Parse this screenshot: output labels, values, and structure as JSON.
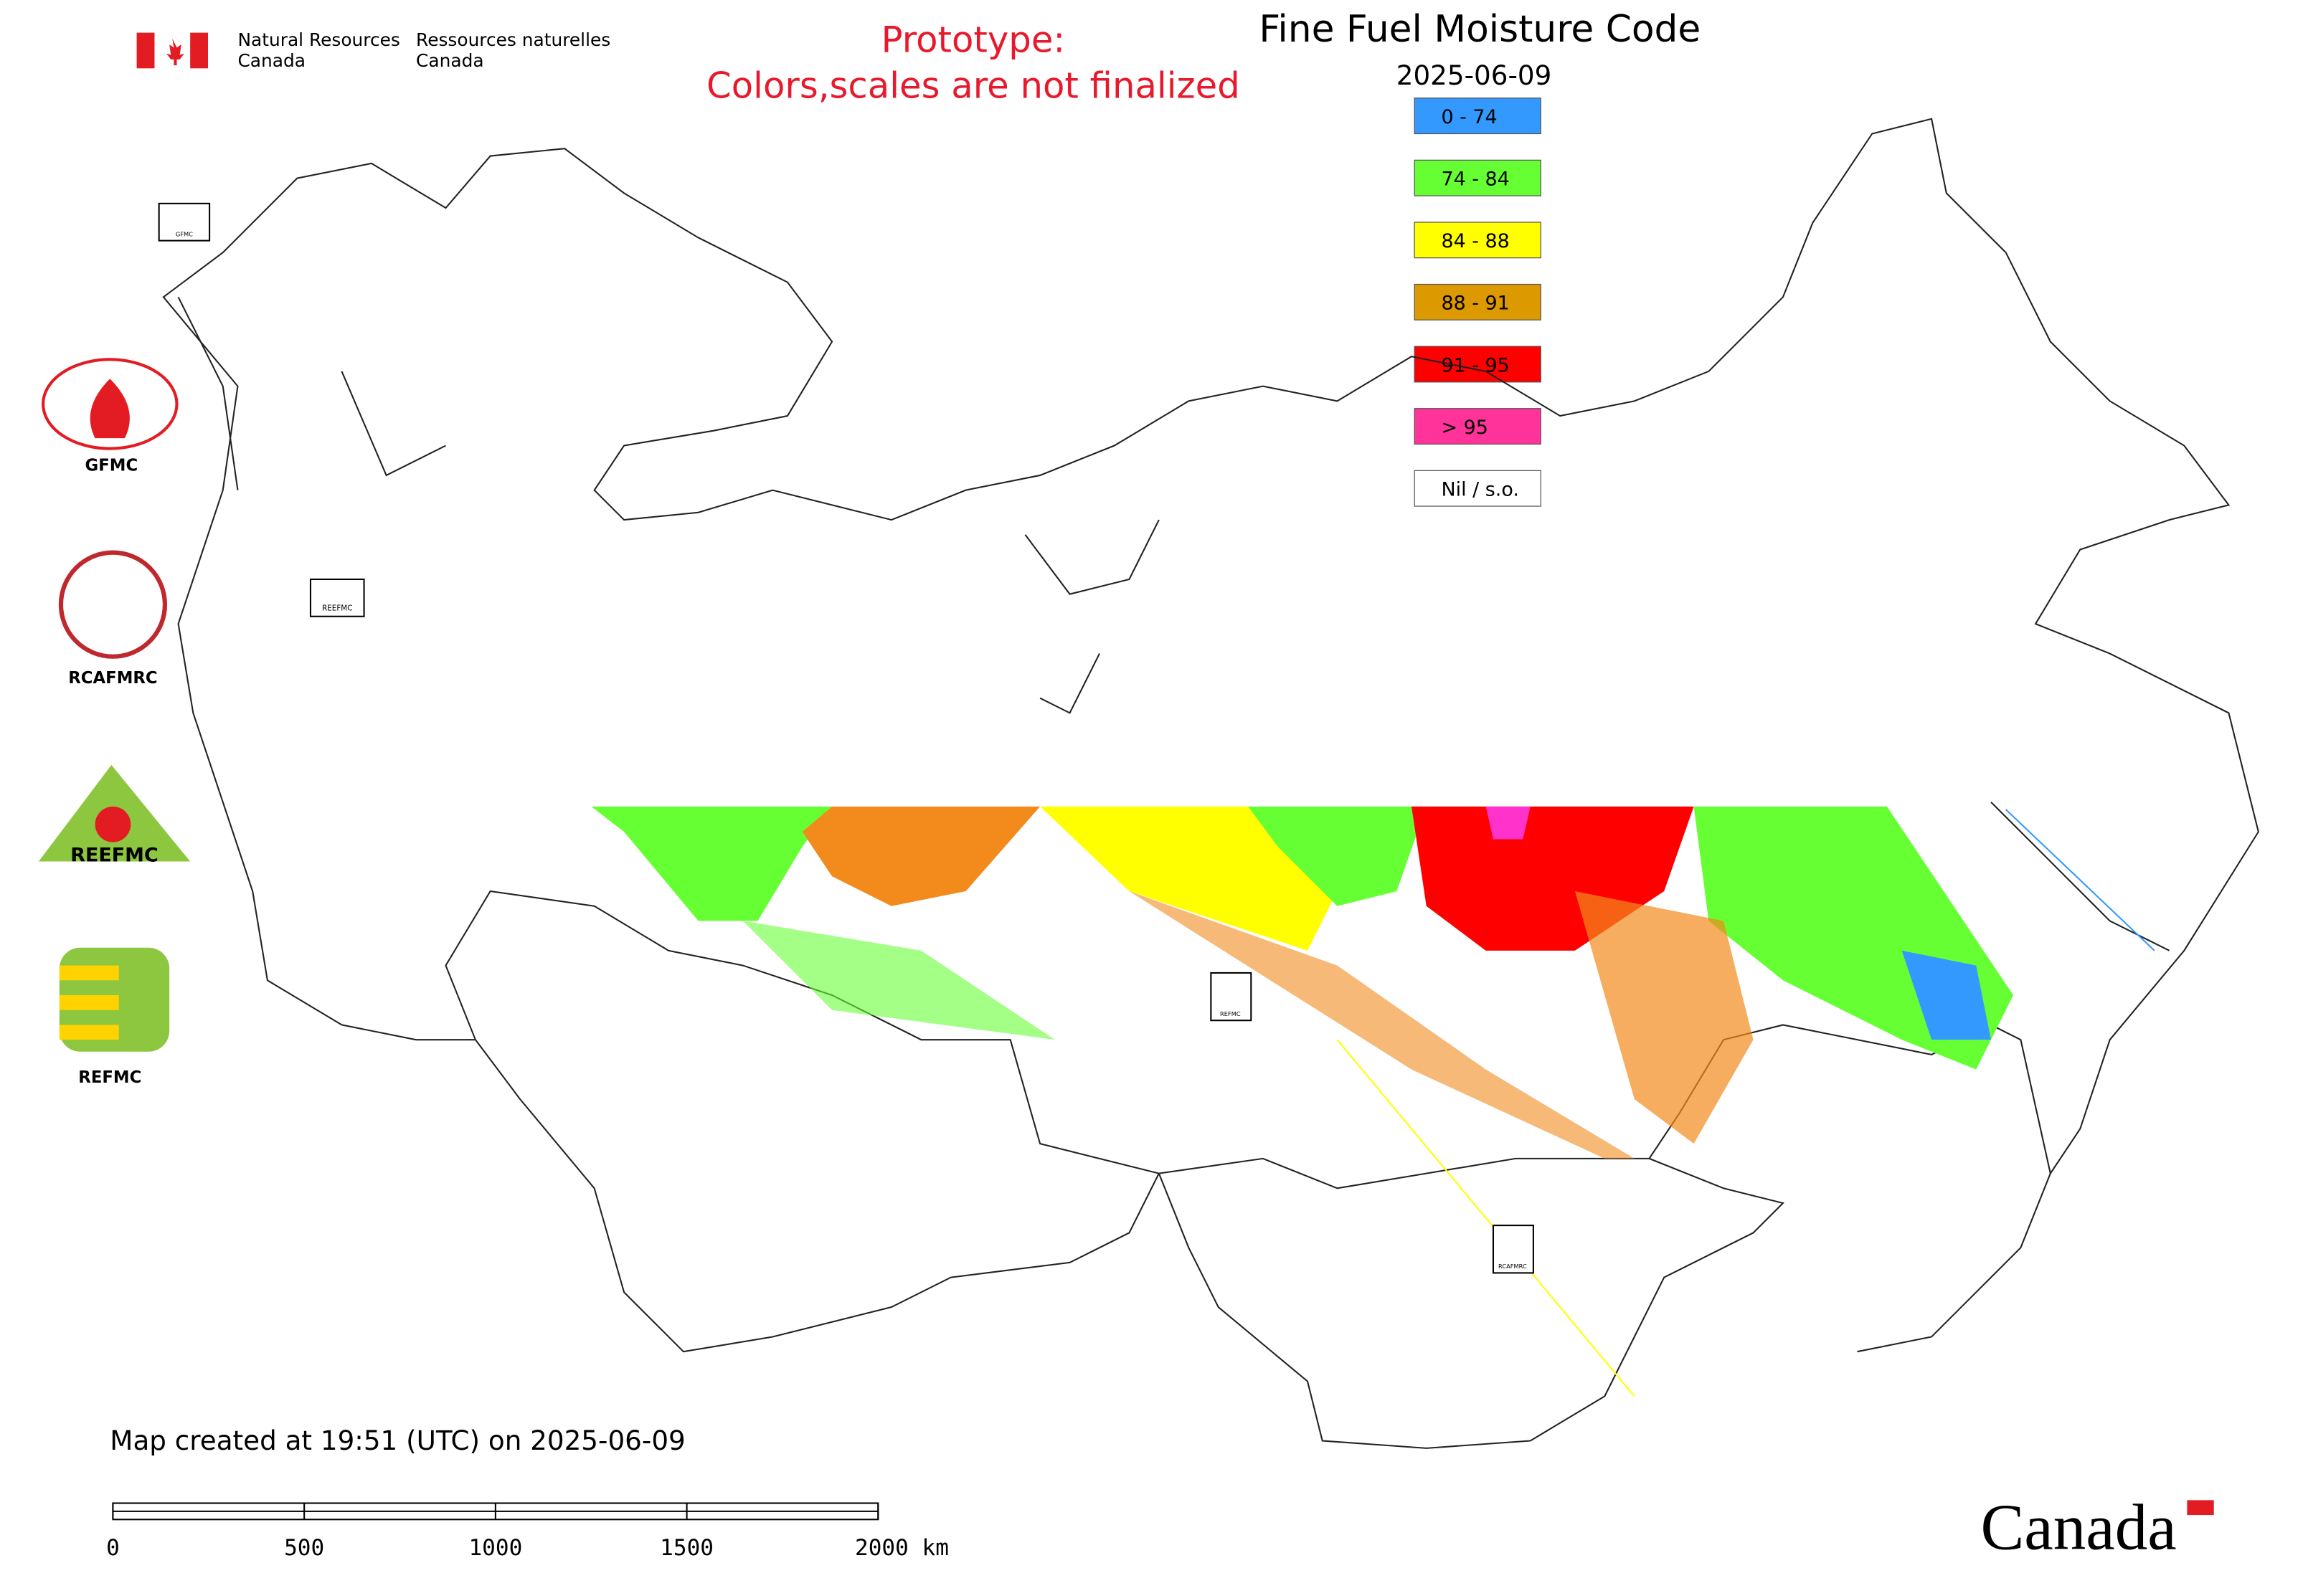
{
  "header": {
    "department_en": [
      "Natural Resources",
      "Canada"
    ],
    "department_fr": [
      "Ressources naturelles",
      "Canada"
    ],
    "notice": [
      "Prototype:",
      "Colors,scales are not finalized"
    ]
  },
  "map": {
    "title": "Fine Fuel Moisture Code",
    "date": "2025-06-09",
    "legend": [
      {
        "label": "0 - 74",
        "color": "#3399ff"
      },
      {
        "label": "74 - 84",
        "color": "#66ff33"
      },
      {
        "label": "84 - 88",
        "color": "#ffff00"
      },
      {
        "label": "88 - 91",
        "color": "#dd9900"
      },
      {
        "label": "91 - 95",
        "color": "#ff0000"
      },
      {
        "label": "> 95",
        "color": "#ff3399"
      },
      {
        "label": "Nil / s.o.",
        "color": "#ffffff"
      }
    ],
    "created": "Map created at 19:51 (UTC) on 2025-06-09",
    "scale_bar": [
      "0",
      "500",
      "1000",
      "1500",
      "2000 km"
    ]
  },
  "logos": [
    "GFMC",
    "RCAFMRC",
    "REEFMC",
    "REFMC"
  ],
  "footer": {
    "wordmark": "Canada"
  }
}
